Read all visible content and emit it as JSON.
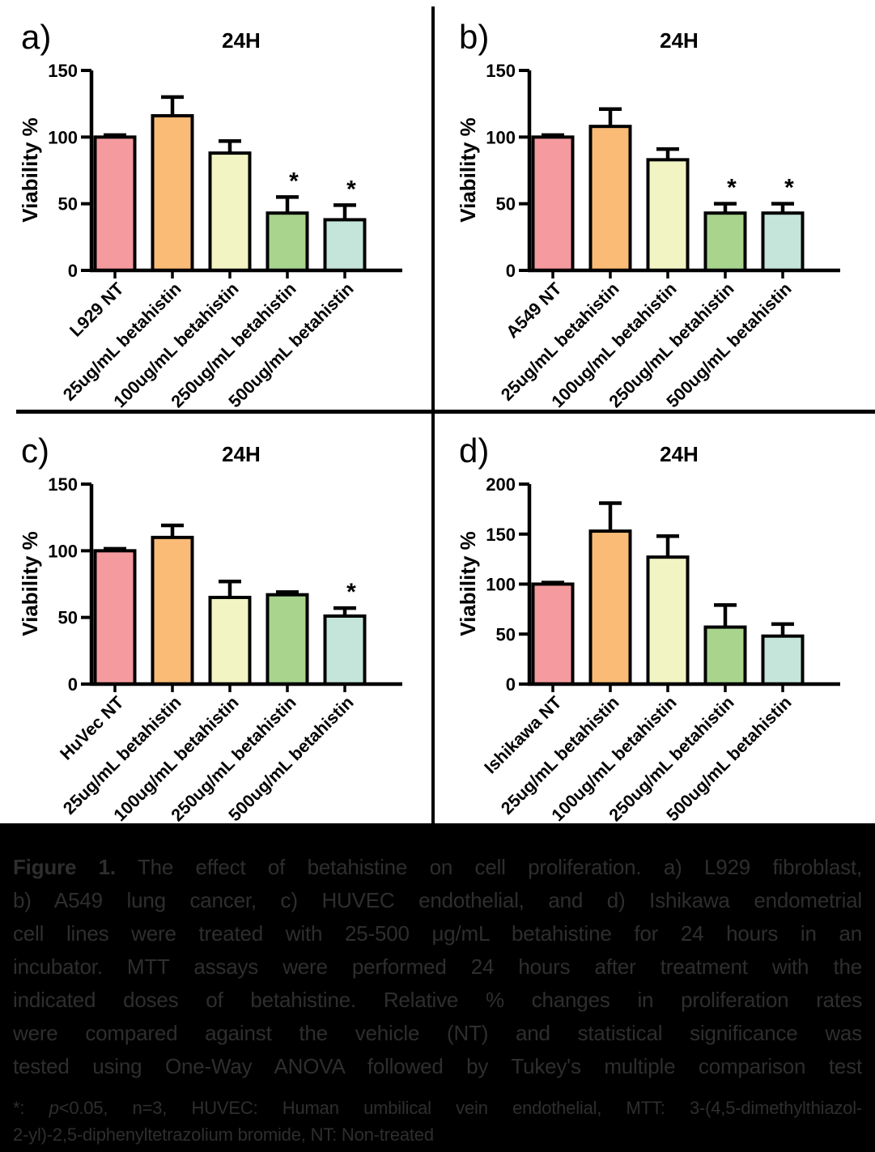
{
  "chart_data": [
    {
      "type": "bar",
      "panel_label": "a)",
      "title": "24H",
      "ylabel": "Viability %",
      "ylim": [
        0,
        150
      ],
      "yticks": [
        0,
        50,
        100,
        150
      ],
      "categories": [
        "L929 NT",
        "25ug/mL betahistin",
        "100ug/mL betahistin",
        "250ug/mL betahistin",
        "500ug/mL betahistin"
      ],
      "values": [
        100,
        116,
        88,
        43,
        38
      ],
      "errors_upper": [
        1.5,
        14,
        9,
        12,
        11
      ],
      "significance": [
        "",
        "",
        "",
        "*",
        "*"
      ]
    },
    {
      "type": "bar",
      "panel_label": "b)",
      "title": "24H",
      "ylabel": "Viability %",
      "ylim": [
        0,
        150
      ],
      "yticks": [
        0,
        50,
        100,
        150
      ],
      "categories": [
        "A549 NT",
        "25ug/mL betahistin",
        "100ug/mL betahistin",
        "250ug/mL betahistin",
        "500ug/mL betahistin"
      ],
      "values": [
        100,
        108,
        83,
        43,
        43
      ],
      "errors_upper": [
        1.5,
        13,
        8,
        7,
        7
      ],
      "significance": [
        "",
        "",
        "",
        "*",
        "*"
      ]
    },
    {
      "type": "bar",
      "panel_label": "c)",
      "title": "24H",
      "ylabel": "Viability %",
      "ylim": [
        0,
        150
      ],
      "yticks": [
        0,
        50,
        100,
        150
      ],
      "categories": [
        "HuVec NT",
        "25ug/mL betahistin",
        "100ug/mL betahistin",
        "250ug/mL betahistin",
        "500ug/mL betahistin"
      ],
      "values": [
        100,
        110,
        65,
        67,
        51
      ],
      "errors_upper": [
        1.5,
        9,
        12,
        2,
        6
      ],
      "significance": [
        "",
        "",
        "",
        "",
        "*"
      ]
    },
    {
      "type": "bar",
      "panel_label": "d)",
      "title": "24H",
      "ylabel": "Viability %",
      "ylim": [
        0,
        200
      ],
      "yticks": [
        0,
        50,
        100,
        150,
        200
      ],
      "categories": [
        "Ishikawa NT",
        "25ug/mL betahistin",
        "100ug/mL betahistin",
        "250ug/mL betahistin",
        "500ug/mL betahistin"
      ],
      "values": [
        100,
        153,
        127,
        57,
        48
      ],
      "errors_upper": [
        1.5,
        28,
        21,
        22,
        12
      ],
      "significance": [
        "",
        "",
        "",
        "",
        ""
      ]
    }
  ],
  "style": {
    "bar_colors": [
      "#F59B9F",
      "#FABB76",
      "#F2F4C3",
      "#A8D48E",
      "#C5E5DB"
    ],
    "bar_stroke": "#000000",
    "sig_marker": "*",
    "caption_bg": "#000000",
    "caption_text_color": "#2E2E2E"
  },
  "caption": {
    "lines": [
      {
        "bold": "Figure 1.",
        "text": " The effect of betahistine on cell proliferation. a) L929 fibroblast,"
      },
      {
        "text": "b) A549 lung cancer, c) HUVEC endothelial, and d) Ishikawa endometrial"
      },
      {
        "text": "cell lines were treated with 25-500 μg/mL betahistine for 24 hours in an"
      },
      {
        "text": "incubator. MTT assays were performed 24 hours after treatment with the"
      },
      {
        "text": "indicated doses of betahistine. Relative % changes in proliferation rates"
      },
      {
        "text": "were compared against the vehicle (NT) and statistical significance was"
      },
      {
        "text": "tested using One-Way ANOVA followed by Tukey's multiple comparison test"
      }
    ],
    "footnote_lines": [
      {
        "justify": true,
        "parts": [
          {
            "t": "*: "
          },
          {
            "t": "p",
            "italic": true
          },
          {
            "t": "<0.05, n=3, HUVEC: Human umbilical vein endothelial, MTT: 3-(4,5-dimethylthiazol-"
          }
        ]
      },
      {
        "justify": false,
        "parts": [
          {
            "t": "2-yl)-2,5-diphenyltetrazolium bromide, NT: Non-treated"
          }
        ]
      }
    ]
  }
}
